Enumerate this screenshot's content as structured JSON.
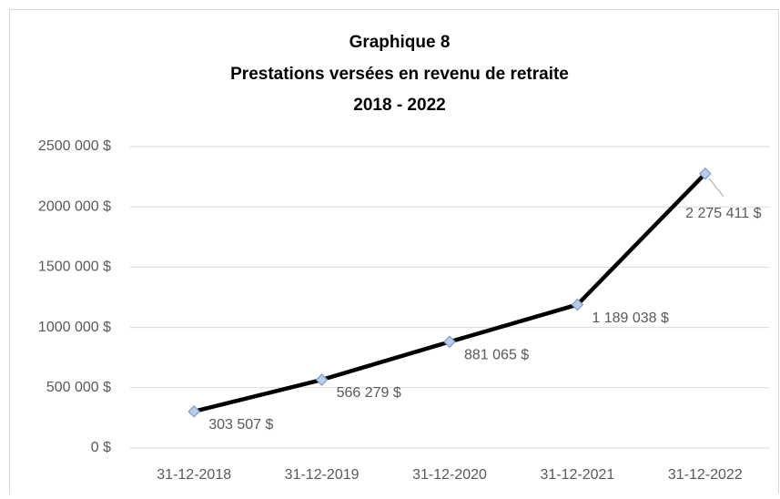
{
  "chart_data": {
    "type": "line",
    "title": [
      "Graphique 8",
      "Prestations versées en revenu de retraite",
      "2018 - 2022"
    ],
    "categories": [
      "31-12-2018",
      "31-12-2019",
      "31-12-2020",
      "31-12-2021",
      "31-12-2022"
    ],
    "series": [
      {
        "name": "Prestations versées en revenu de retraite",
        "color": "#000000",
        "marker_color": "#b9cde5",
        "values": [
          303507,
          566279,
          881065,
          1189038,
          2275411
        ],
        "value_labels": [
          "303 507 $",
          "566 279 $",
          "881 065 $",
          "1 189 038 $",
          "2 275 411 $"
        ]
      }
    ],
    "ylim": [
      0,
      2500000
    ],
    "yticks": [
      {
        "value": 0,
        "label": "0 $"
      },
      {
        "value": 500000,
        "label": "500 000 $"
      },
      {
        "value": 1000000,
        "label": "1000 000 $"
      },
      {
        "value": 1500000,
        "label": "1500 000 $"
      },
      {
        "value": 2000000,
        "label": "2000 000 $"
      },
      {
        "value": 2500000,
        "label": "2500 000 $"
      }
    ],
    "grid": true,
    "legend": false
  }
}
